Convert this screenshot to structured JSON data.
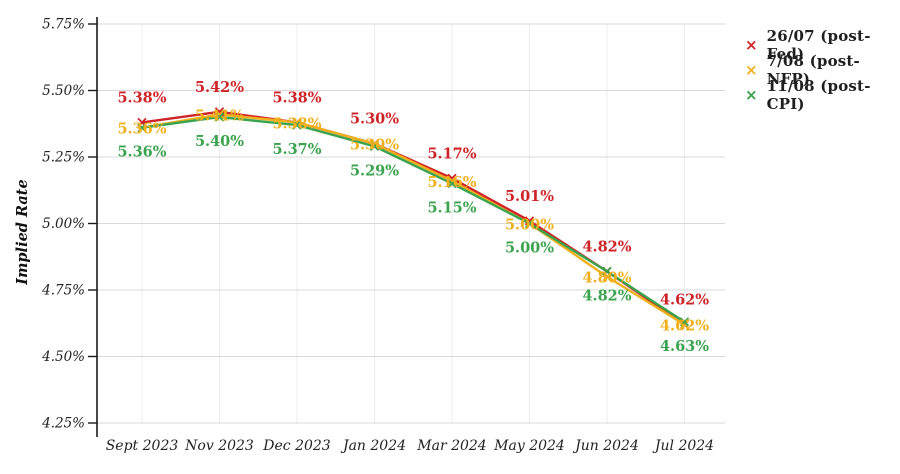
{
  "chart_data": {
    "type": "line",
    "title": "",
    "xlabel": "",
    "ylabel": "Implied Rate",
    "marker": "x",
    "grid": "horizontal solid + faint vertical category lines",
    "legend_position": "top-right outside plot",
    "ylim": [
      4.25,
      5.75
    ],
    "y_ticks": [
      "5.75%",
      "5.50%",
      "5.25%",
      "5.00%",
      "4.75%",
      "4.50%",
      "4.25%"
    ],
    "y_tick_values": [
      5.75,
      5.5,
      5.25,
      5.0,
      4.75,
      4.5,
      4.25
    ],
    "categories": [
      "Sept 2023",
      "Nov 2023",
      "Dec 2023",
      "Jan 2024",
      "Mar 2024",
      "May 2024",
      "Jun 2024",
      "Jul 2024"
    ],
    "series": [
      {
        "name": "26/07 (post-Fed)",
        "color": "#cf2427",
        "values": [
          5.38,
          5.42,
          5.38,
          5.3,
          5.17,
          5.01,
          4.82,
          4.62
        ],
        "labels": [
          "5.38%",
          "5.42%",
          "5.38%",
          "5.30%",
          "5.17%",
          "5.01%",
          "4.82%",
          "4.62%"
        ]
      },
      {
        "name": "7/08 (post-NFP)",
        "color": "#f0b01d",
        "values": [
          5.36,
          5.41,
          5.38,
          5.3,
          5.16,
          5.0,
          4.8,
          4.62
        ],
        "labels": [
          "5.36%",
          "5.41%",
          "5.38%",
          "5.30%",
          "5.16%",
          "5.00%",
          "4.80%",
          "4.62%"
        ]
      },
      {
        "name": "11/08 (post-CPI)",
        "color": "#3aa34d",
        "values": [
          5.36,
          5.4,
          5.37,
          5.29,
          5.15,
          5.0,
          4.82,
          4.63
        ],
        "labels": [
          "5.36%",
          "5.40%",
          "5.37%",
          "5.29%",
          "5.15%",
          "5.00%",
          "4.82%",
          "4.63%"
        ]
      }
    ]
  }
}
